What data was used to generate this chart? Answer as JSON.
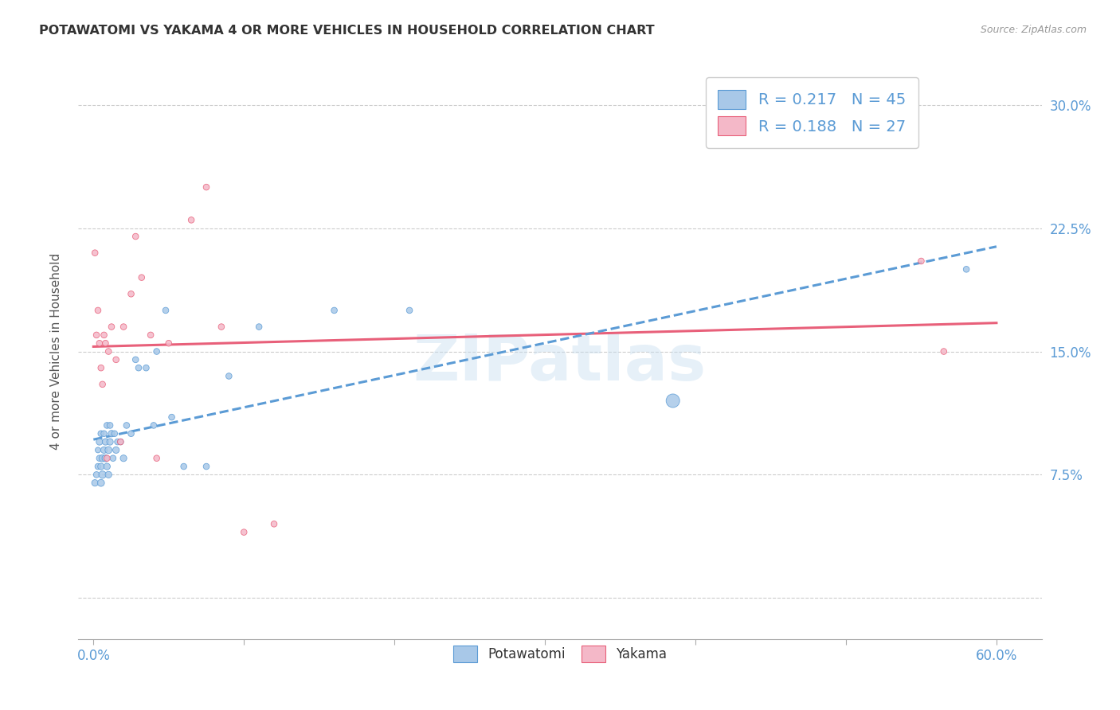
{
  "title": "POTAWATOMI VS YAKAMA 4 OR MORE VEHICLES IN HOUSEHOLD CORRELATION CHART",
  "source": "Source: ZipAtlas.com",
  "xlabel_tick_vals": [
    0.0,
    0.1,
    0.2,
    0.3,
    0.4,
    0.5,
    0.6
  ],
  "ylabel_tick_vals": [
    0.0,
    0.075,
    0.15,
    0.225,
    0.3
  ],
  "ylabel_tick_labels": [
    "",
    "7.5%",
    "15.0%",
    "22.5%",
    "30.0%"
  ],
  "xlim": [
    -0.01,
    0.63
  ],
  "ylim": [
    -0.025,
    0.325
  ],
  "ylabel": "4 or more Vehicles in Household",
  "potawatomi_color": "#a8c8e8",
  "yakama_color": "#f4b8c8",
  "legend_potawatomi_label": "R = 0.217   N = 45",
  "legend_yakama_label": "R = 0.188   N = 27",
  "legend_label_potawatomi": "Potawatomi",
  "legend_label_yakama": "Yakama",
  "trendline_potawatomi_color": "#5b9bd5",
  "trendline_yakama_color": "#e8607a",
  "watermark": "ZIPatlas",
  "tick_label_color": "#5b9bd5",
  "potawatomi_x": [
    0.001,
    0.002,
    0.003,
    0.003,
    0.004,
    0.004,
    0.005,
    0.005,
    0.005,
    0.006,
    0.006,
    0.007,
    0.007,
    0.008,
    0.008,
    0.009,
    0.009,
    0.01,
    0.01,
    0.011,
    0.011,
    0.012,
    0.013,
    0.014,
    0.015,
    0.016,
    0.018,
    0.02,
    0.022,
    0.025,
    0.028,
    0.03,
    0.035,
    0.04,
    0.042,
    0.048,
    0.052,
    0.06,
    0.075,
    0.09,
    0.11,
    0.16,
    0.21,
    0.385,
    0.58
  ],
  "potawatomi_y": [
    0.07,
    0.075,
    0.08,
    0.09,
    0.085,
    0.095,
    0.07,
    0.08,
    0.1,
    0.075,
    0.085,
    0.09,
    0.1,
    0.085,
    0.095,
    0.08,
    0.105,
    0.075,
    0.09,
    0.095,
    0.105,
    0.1,
    0.085,
    0.1,
    0.09,
    0.095,
    0.095,
    0.085,
    0.105,
    0.1,
    0.145,
    0.14,
    0.14,
    0.105,
    0.15,
    0.175,
    0.11,
    0.08,
    0.08,
    0.135,
    0.165,
    0.175,
    0.175,
    0.12,
    0.2
  ],
  "potawatomi_sizes": [
    35,
    30,
    30,
    25,
    30,
    35,
    40,
    35,
    30,
    45,
    40,
    35,
    30,
    40,
    35,
    35,
    30,
    35,
    40,
    35,
    30,
    35,
    30,
    30,
    35,
    30,
    30,
    35,
    30,
    30,
    30,
    30,
    30,
    30,
    30,
    30,
    30,
    30,
    30,
    30,
    30,
    30,
    30,
    150,
    30
  ],
  "yakama_x": [
    0.001,
    0.002,
    0.003,
    0.004,
    0.005,
    0.006,
    0.007,
    0.008,
    0.009,
    0.01,
    0.012,
    0.015,
    0.018,
    0.02,
    0.025,
    0.028,
    0.032,
    0.038,
    0.042,
    0.05,
    0.065,
    0.075,
    0.085,
    0.1,
    0.12,
    0.55,
    0.565
  ],
  "yakama_y": [
    0.21,
    0.16,
    0.175,
    0.155,
    0.14,
    0.13,
    0.16,
    0.155,
    0.085,
    0.15,
    0.165,
    0.145,
    0.095,
    0.165,
    0.185,
    0.22,
    0.195,
    0.16,
    0.085,
    0.155,
    0.23,
    0.25,
    0.165,
    0.04,
    0.045,
    0.205,
    0.15
  ],
  "yakama_sizes": [
    30,
    30,
    30,
    30,
    30,
    30,
    30,
    30,
    30,
    30,
    30,
    30,
    30,
    30,
    30,
    30,
    30,
    30,
    30,
    30,
    30,
    30,
    30,
    30,
    30,
    30,
    30
  ]
}
